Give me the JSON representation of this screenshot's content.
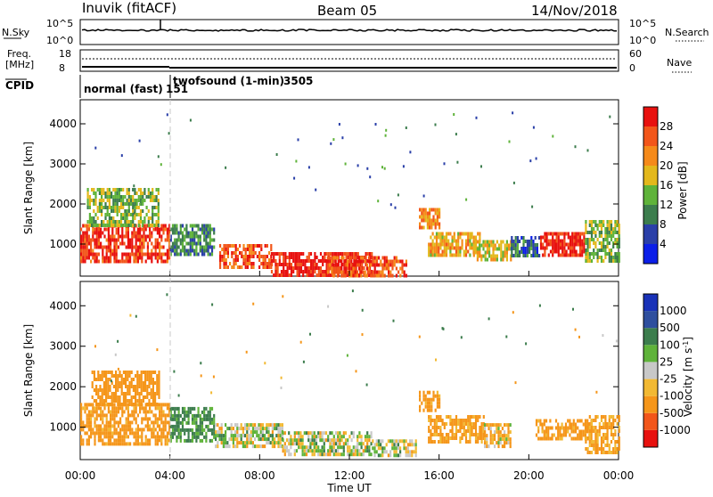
{
  "header": {
    "radar": "Inuvik (fitACF)",
    "beam": "Beam 05",
    "date": "14/Nov/2018"
  },
  "summary_panels": {
    "nsky": {
      "label": "N.Sky",
      "tick_top": "10^5",
      "tick_bottom": "10^0"
    },
    "nsearch": {
      "label": "N.Search",
      "tick_top": "10^5",
      "tick_bottom": "10^0"
    },
    "freq": {
      "label_line1": "Freq.",
      "label_line2": "[MHz]",
      "tick_top": "18",
      "tick_bottom": "8"
    },
    "nave": {
      "label": "Nave",
      "tick_top": "60",
      "tick_bottom": "0"
    },
    "cpid": {
      "label": "CPID",
      "mode1": "normal (fast)",
      "mode1_id": "151",
      "mode2": "twofsound (1-min)",
      "mode2_id": "3505"
    }
  },
  "colors": {
    "power": [
      "#0b1ee8",
      "#2a3fa8",
      "#3c7d4d",
      "#5fb33a",
      "#e3b81c",
      "#f58a1a",
      "#f2561a",
      "#e8110f"
    ],
    "velocity": [
      "#e8110f",
      "#f2561a",
      "#f5961a",
      "#f2b933",
      "#c8c8c8",
      "#5fb33a",
      "#3c7d4d",
      "#2f4f9e",
      "#1932b8"
    ]
  },
  "chart_data": [
    {
      "type": "heatmap",
      "panel": "power",
      "ylabel": "Slant Range [km]",
      "yticks": [
        "1000",
        "2000",
        "3000",
        "4000"
      ],
      "ylim": [
        200,
        4600
      ],
      "colorbar_label": "Power [dB]",
      "colorbar_ticks": [
        "4",
        "8",
        "12",
        "16",
        "20",
        "24",
        "28"
      ],
      "colorbar_range": [
        0,
        32
      ],
      "regions": [
        {
          "t0": 0.0,
          "t1": 4.0,
          "r0": 600,
          "r1": 1500,
          "power": 28
        },
        {
          "t0": 0.3,
          "t1": 3.5,
          "r0": 1500,
          "r1": 2400,
          "power": 14
        },
        {
          "t0": 4.0,
          "t1": 6.0,
          "r0": 700,
          "r1": 1500,
          "power": 10
        },
        {
          "t0": 6.2,
          "t1": 8.5,
          "r0": 400,
          "r1": 1000,
          "power": 26
        },
        {
          "t0": 8.5,
          "t1": 13.0,
          "r0": 250,
          "r1": 800,
          "power": 30
        },
        {
          "t0": 11.0,
          "t1": 14.5,
          "r0": 250,
          "r1": 700,
          "power": 26
        },
        {
          "t0": 15.1,
          "t1": 16.0,
          "r0": 1400,
          "r1": 1900,
          "power": 22
        },
        {
          "t0": 15.5,
          "t1": 17.8,
          "r0": 700,
          "r1": 1300,
          "power": 20
        },
        {
          "t0": 17.5,
          "t1": 19.2,
          "r0": 600,
          "r1": 1100,
          "power": 18
        },
        {
          "t0": 19.2,
          "t1": 20.5,
          "r0": 700,
          "r1": 1200,
          "power": 8
        },
        {
          "t0": 20.5,
          "t1": 22.5,
          "r0": 700,
          "r1": 1300,
          "power": 30
        },
        {
          "t0": 22.5,
          "t1": 24.0,
          "r0": 600,
          "r1": 1600,
          "power": 14
        }
      ]
    },
    {
      "type": "heatmap",
      "panel": "velocity",
      "ylabel": "Slant Range [km]",
      "yticks": [
        "1000",
        "2000",
        "3000",
        "4000"
      ],
      "ylim": [
        200,
        4600
      ],
      "xlabel": "Time UT",
      "xticks": [
        "00:00",
        "04:00",
        "08:00",
        "12:00",
        "16:00",
        "20:00",
        "00:00"
      ],
      "xlim": [
        0,
        24
      ],
      "colorbar_label": "Velocity [m s^-1]",
      "colorbar_ticks": [
        "-1000",
        "-500",
        "-100",
        "-25",
        "25",
        "100",
        "500",
        "1000"
      ],
      "regions": [
        {
          "t0": 0.0,
          "t1": 4.0,
          "r0": 600,
          "r1": 1600,
          "velocity": -200
        },
        {
          "t0": 0.5,
          "t1": 3.5,
          "r0": 1600,
          "r1": 2400,
          "velocity": -300
        },
        {
          "t0": 4.0,
          "t1": 6.0,
          "r0": 700,
          "r1": 1500,
          "velocity": 150
        },
        {
          "t0": 6.0,
          "t1": 9.0,
          "r0": 500,
          "r1": 1100,
          "velocity": 0
        },
        {
          "t0": 9.0,
          "t1": 13.0,
          "r0": 300,
          "r1": 900,
          "velocity": 0
        },
        {
          "t0": 13.0,
          "t1": 15.0,
          "r0": 300,
          "r1": 700,
          "velocity": 10
        },
        {
          "t0": 15.1,
          "t1": 16.0,
          "r0": 1400,
          "r1": 1900,
          "velocity": -200
        },
        {
          "t0": 15.5,
          "t1": 18.0,
          "r0": 600,
          "r1": 1300,
          "velocity": -150
        },
        {
          "t0": 18.0,
          "t1": 19.2,
          "r0": 500,
          "r1": 1100,
          "velocity": -80
        },
        {
          "t0": 20.3,
          "t1": 22.8,
          "r0": 700,
          "r1": 1200,
          "velocity": -200
        },
        {
          "t0": 22.5,
          "t1": 24.0,
          "r0": 400,
          "r1": 1300,
          "velocity": -150
        }
      ]
    }
  ],
  "labels": {
    "plot_separator_time": "04:00"
  }
}
